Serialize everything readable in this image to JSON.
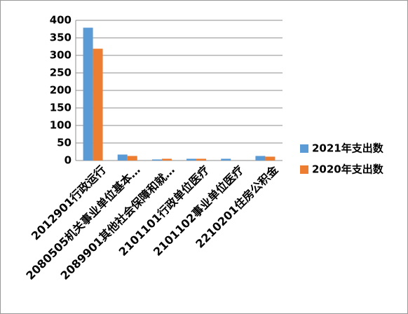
{
  "chart_data": {
    "type": "bar",
    "categories": [
      "2012901行政运行",
      "2080505机关事业单位基本…",
      "2089901其他社会保障和就…",
      "2101101行政单位医疗",
      "2101102事业单位医疗",
      "2210201住房公积金"
    ],
    "series": [
      {
        "name": "2021年支出数",
        "color": "#5b9bd5",
        "values": [
          379,
          17,
          3,
          5,
          5,
          13
        ]
      },
      {
        "name": "2020年支出数",
        "color": "#ed7d31",
        "values": [
          319,
          13,
          5,
          5,
          0,
          11
        ]
      }
    ],
    "ylim": [
      0,
      400
    ],
    "yticks": [
      0,
      50,
      100,
      150,
      200,
      250,
      300,
      350,
      400
    ],
    "grid": true,
    "legend": "right"
  }
}
